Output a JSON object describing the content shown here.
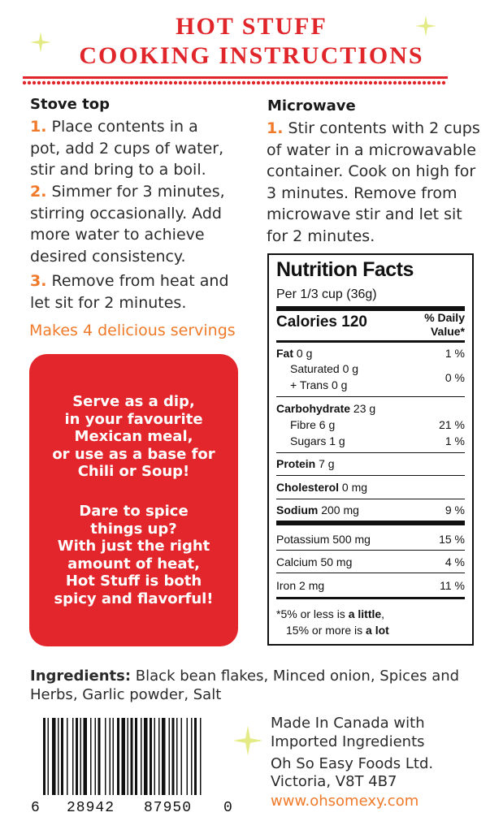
{
  "header": {
    "title_line1": "HOT STUFF",
    "title_line2": "COOKING INSTRUCTIONS"
  },
  "stovetop": {
    "heading": "Stove top",
    "steps": [
      {
        "num": "1.",
        "lines": [
          "Place contents in a",
          "pot, add 2 cups of water,",
          "stir and bring to a boil."
        ]
      },
      {
        "num": "2.",
        "lines": [
          "Simmer for 3 minutes,",
          "stirring occasionally. Add",
          "more water to achieve",
          "desired consistency."
        ]
      },
      {
        "num": "3.",
        "lines": [
          "Remove from heat and",
          "let sit for 2 minutes."
        ]
      }
    ],
    "servings": "Makes 4 delicious servings"
  },
  "microwave": {
    "heading": "Microwave",
    "num": "1.",
    "lines": [
      "Stir contents with 2 cups",
      "of water in a microwavable",
      "container. Cook on high for",
      "3 minutes. Remove from",
      "microwave stir and let sit",
      "for 2 minutes."
    ]
  },
  "promo": {
    "block1": [
      "Serve as a dip,",
      "in your favourite",
      "Mexican meal,",
      "or use as a base for",
      "Chili or Soup!"
    ],
    "block2": [
      "Dare to spice",
      "things up?",
      "With just the right",
      "amount of heat,",
      "Hot Stuff is both",
      "spicy and flavorful!"
    ]
  },
  "nutrition": {
    "title": "Nutrition Facts",
    "serving": "Per 1/3 cup (36g)",
    "calories_label": "Calories 120",
    "dv_header_1": "% Daily",
    "dv_header_2": "Value*",
    "fat": {
      "label": "Fat",
      "amount": "0 g",
      "dv": "1 %"
    },
    "saturated": {
      "label": "Saturated 0 g"
    },
    "trans": {
      "label": "+ Trans 0 g",
      "dv": "0 %"
    },
    "carb": {
      "label": "Carbohydrate",
      "amount": "23 g"
    },
    "fibre": {
      "label": "Fibre 6 g",
      "dv": "21 %"
    },
    "sugars": {
      "label": "Sugars 1 g",
      "dv": "1 %"
    },
    "protein": {
      "label": "Protein",
      "amount": "7 g"
    },
    "cholesterol": {
      "label": "Cholesterol",
      "amount": "0 mg"
    },
    "sodium": {
      "label": "Sodium",
      "amount": "200 mg",
      "dv": "9 %"
    },
    "potassium": {
      "label": "Potassium 500 mg",
      "dv": "15 %"
    },
    "calcium": {
      "label": "Calcium 50 mg",
      "dv": "4 %"
    },
    "iron": {
      "label": "Iron 2 mg",
      "dv": "11 %"
    },
    "foot1_a": "*5% or less is ",
    "foot1_b": "a little",
    "foot2_a": "15% or more is ",
    "foot2_b": "a lot"
  },
  "ingredients": {
    "label": "Ingredients:",
    "text": " Black bean flakes, Minced onion, Spices and Herbs, Garlic powder, Salt"
  },
  "barcode": {
    "first": "6",
    "group1": "28942",
    "group2": "87950",
    "last": "0"
  },
  "company": {
    "made_1": "Made In Canada with",
    "made_2": "Imported Ingredients",
    "name": "Oh So Easy Foods Ltd.",
    "city": "Victoria, V8T 4B7",
    "website": "www.ohsomexy.com"
  },
  "colors": {
    "red": "#e0262a",
    "orange": "#f07a2a",
    "star": "#e8ec8a"
  },
  "icons": [
    "star-icon"
  ]
}
